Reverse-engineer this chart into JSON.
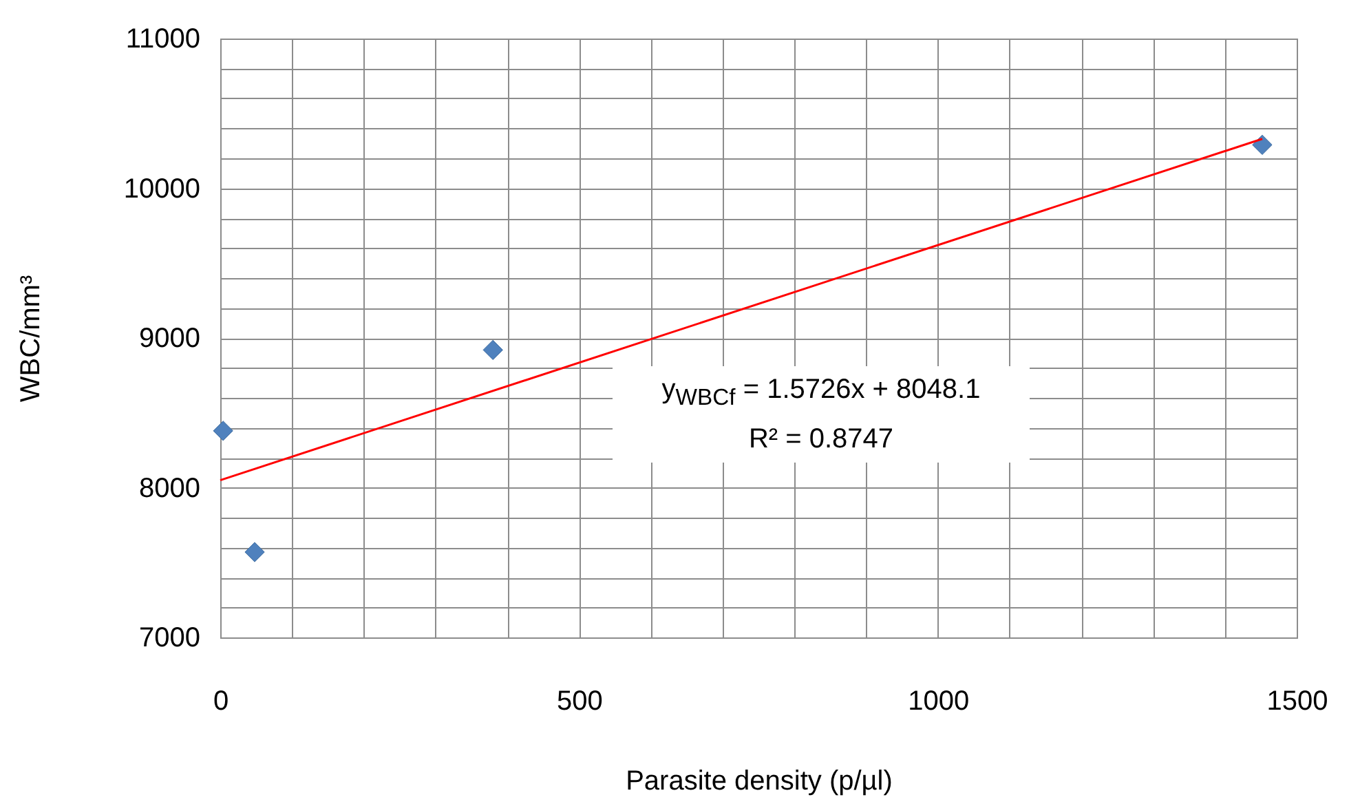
{
  "chart_data": {
    "type": "scatter",
    "xlabel": "Parasite density (p/µl)",
    "ylabel": "WBC/mm³",
    "xlim": [
      0,
      1500
    ],
    "ylim": [
      7000,
      11000
    ],
    "xticks": [
      0,
      {
        "value": 100,
        "label": null
      },
      {
        "value": 200,
        "label": null
      },
      {
        "value": 300,
        "label": null
      },
      {
        "value": 400,
        "label": null
      },
      500,
      {
        "value": 600,
        "label": null
      },
      {
        "value": 700,
        "label": null
      },
      {
        "value": 800,
        "label": null
      },
      {
        "value": 900,
        "label": null
      },
      1000,
      {
        "value": 1100,
        "label": null
      },
      {
        "value": 1200,
        "label": null
      },
      {
        "value": 1300,
        "label": null
      },
      {
        "value": 1400,
        "label": null
      },
      1500
    ],
    "yticks": [
      7000,
      {
        "value": 7200,
        "label": null
      },
      {
        "value": 7400,
        "label": null
      },
      {
        "value": 7600,
        "label": null
      },
      {
        "value": 7800,
        "label": null
      },
      8000,
      {
        "value": 8200,
        "label": null
      },
      {
        "value": 8400,
        "label": null
      },
      {
        "value": 8600,
        "label": null
      },
      {
        "value": 8800,
        "label": null
      },
      9000,
      {
        "value": 9200,
        "label": null
      },
      {
        "value": 9400,
        "label": null
      },
      {
        "value": 9600,
        "label": null
      },
      {
        "value": 9800,
        "label": null
      },
      10000,
      {
        "value": 10200,
        "label": null
      },
      {
        "value": 10400,
        "label": null
      },
      {
        "value": 10600,
        "label": null
      },
      {
        "value": 10800,
        "label": null
      },
      11000
    ],
    "grid": true,
    "series": [
      {
        "color": "#4f81bd",
        "marker": "diamond",
        "x": [
          4,
          48,
          380,
          1452
        ],
        "values": [
          8380,
          7570,
          8920,
          10290
        ]
      },
      {
        "type": "line",
        "color": "#ff0000",
        "line_style": "solid",
        "x": [
          0,
          1452
        ],
        "values": [
          8050,
          10330
        ]
      }
    ],
    "annotations": [
      "y$_{WBCf}$ = 1.5726x + 8048.1",
      "R² = 0.8747"
    ]
  }
}
